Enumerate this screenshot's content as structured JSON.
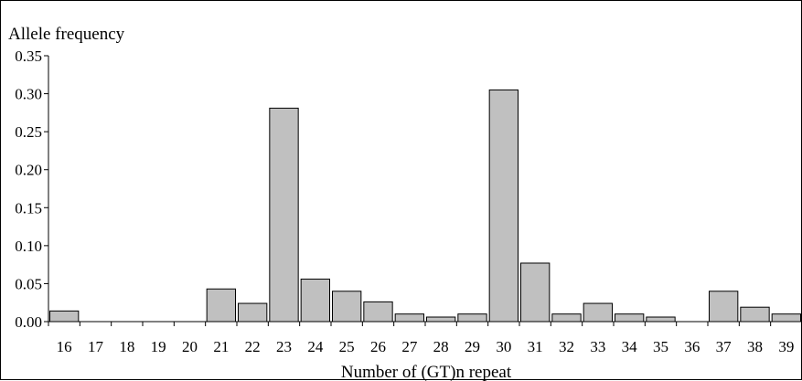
{
  "chart_data": {
    "type": "bar",
    "title": "",
    "ylabel": "Allele frequency",
    "xlabel": "Number of (GT)n repeat",
    "categories": [
      "16",
      "17",
      "18",
      "19",
      "20",
      "21",
      "22",
      "23",
      "24",
      "25",
      "26",
      "27",
      "28",
      "29",
      "30",
      "31",
      "32",
      "33",
      "34",
      "35",
      "36",
      "37",
      "38",
      "39"
    ],
    "values": [
      0.014,
      0,
      0,
      0,
      0,
      0.043,
      0.024,
      0.281,
      0.056,
      0.04,
      0.026,
      0.01,
      0.006,
      0.01,
      0.305,
      0.077,
      0.01,
      0.024,
      0.01,
      0.006,
      0,
      0.04,
      0.019,
      0.01
    ],
    "ylim": [
      0,
      0.35
    ],
    "yticks": [
      "0.00",
      "0.05",
      "0.10",
      "0.15",
      "0.20",
      "0.25",
      "0.30",
      "0.35"
    ],
    "grid": false,
    "legend": "none",
    "colors": {
      "bar_fill": "#c0c0c0",
      "bar_stroke": "#000000",
      "axis": "#000000"
    }
  }
}
